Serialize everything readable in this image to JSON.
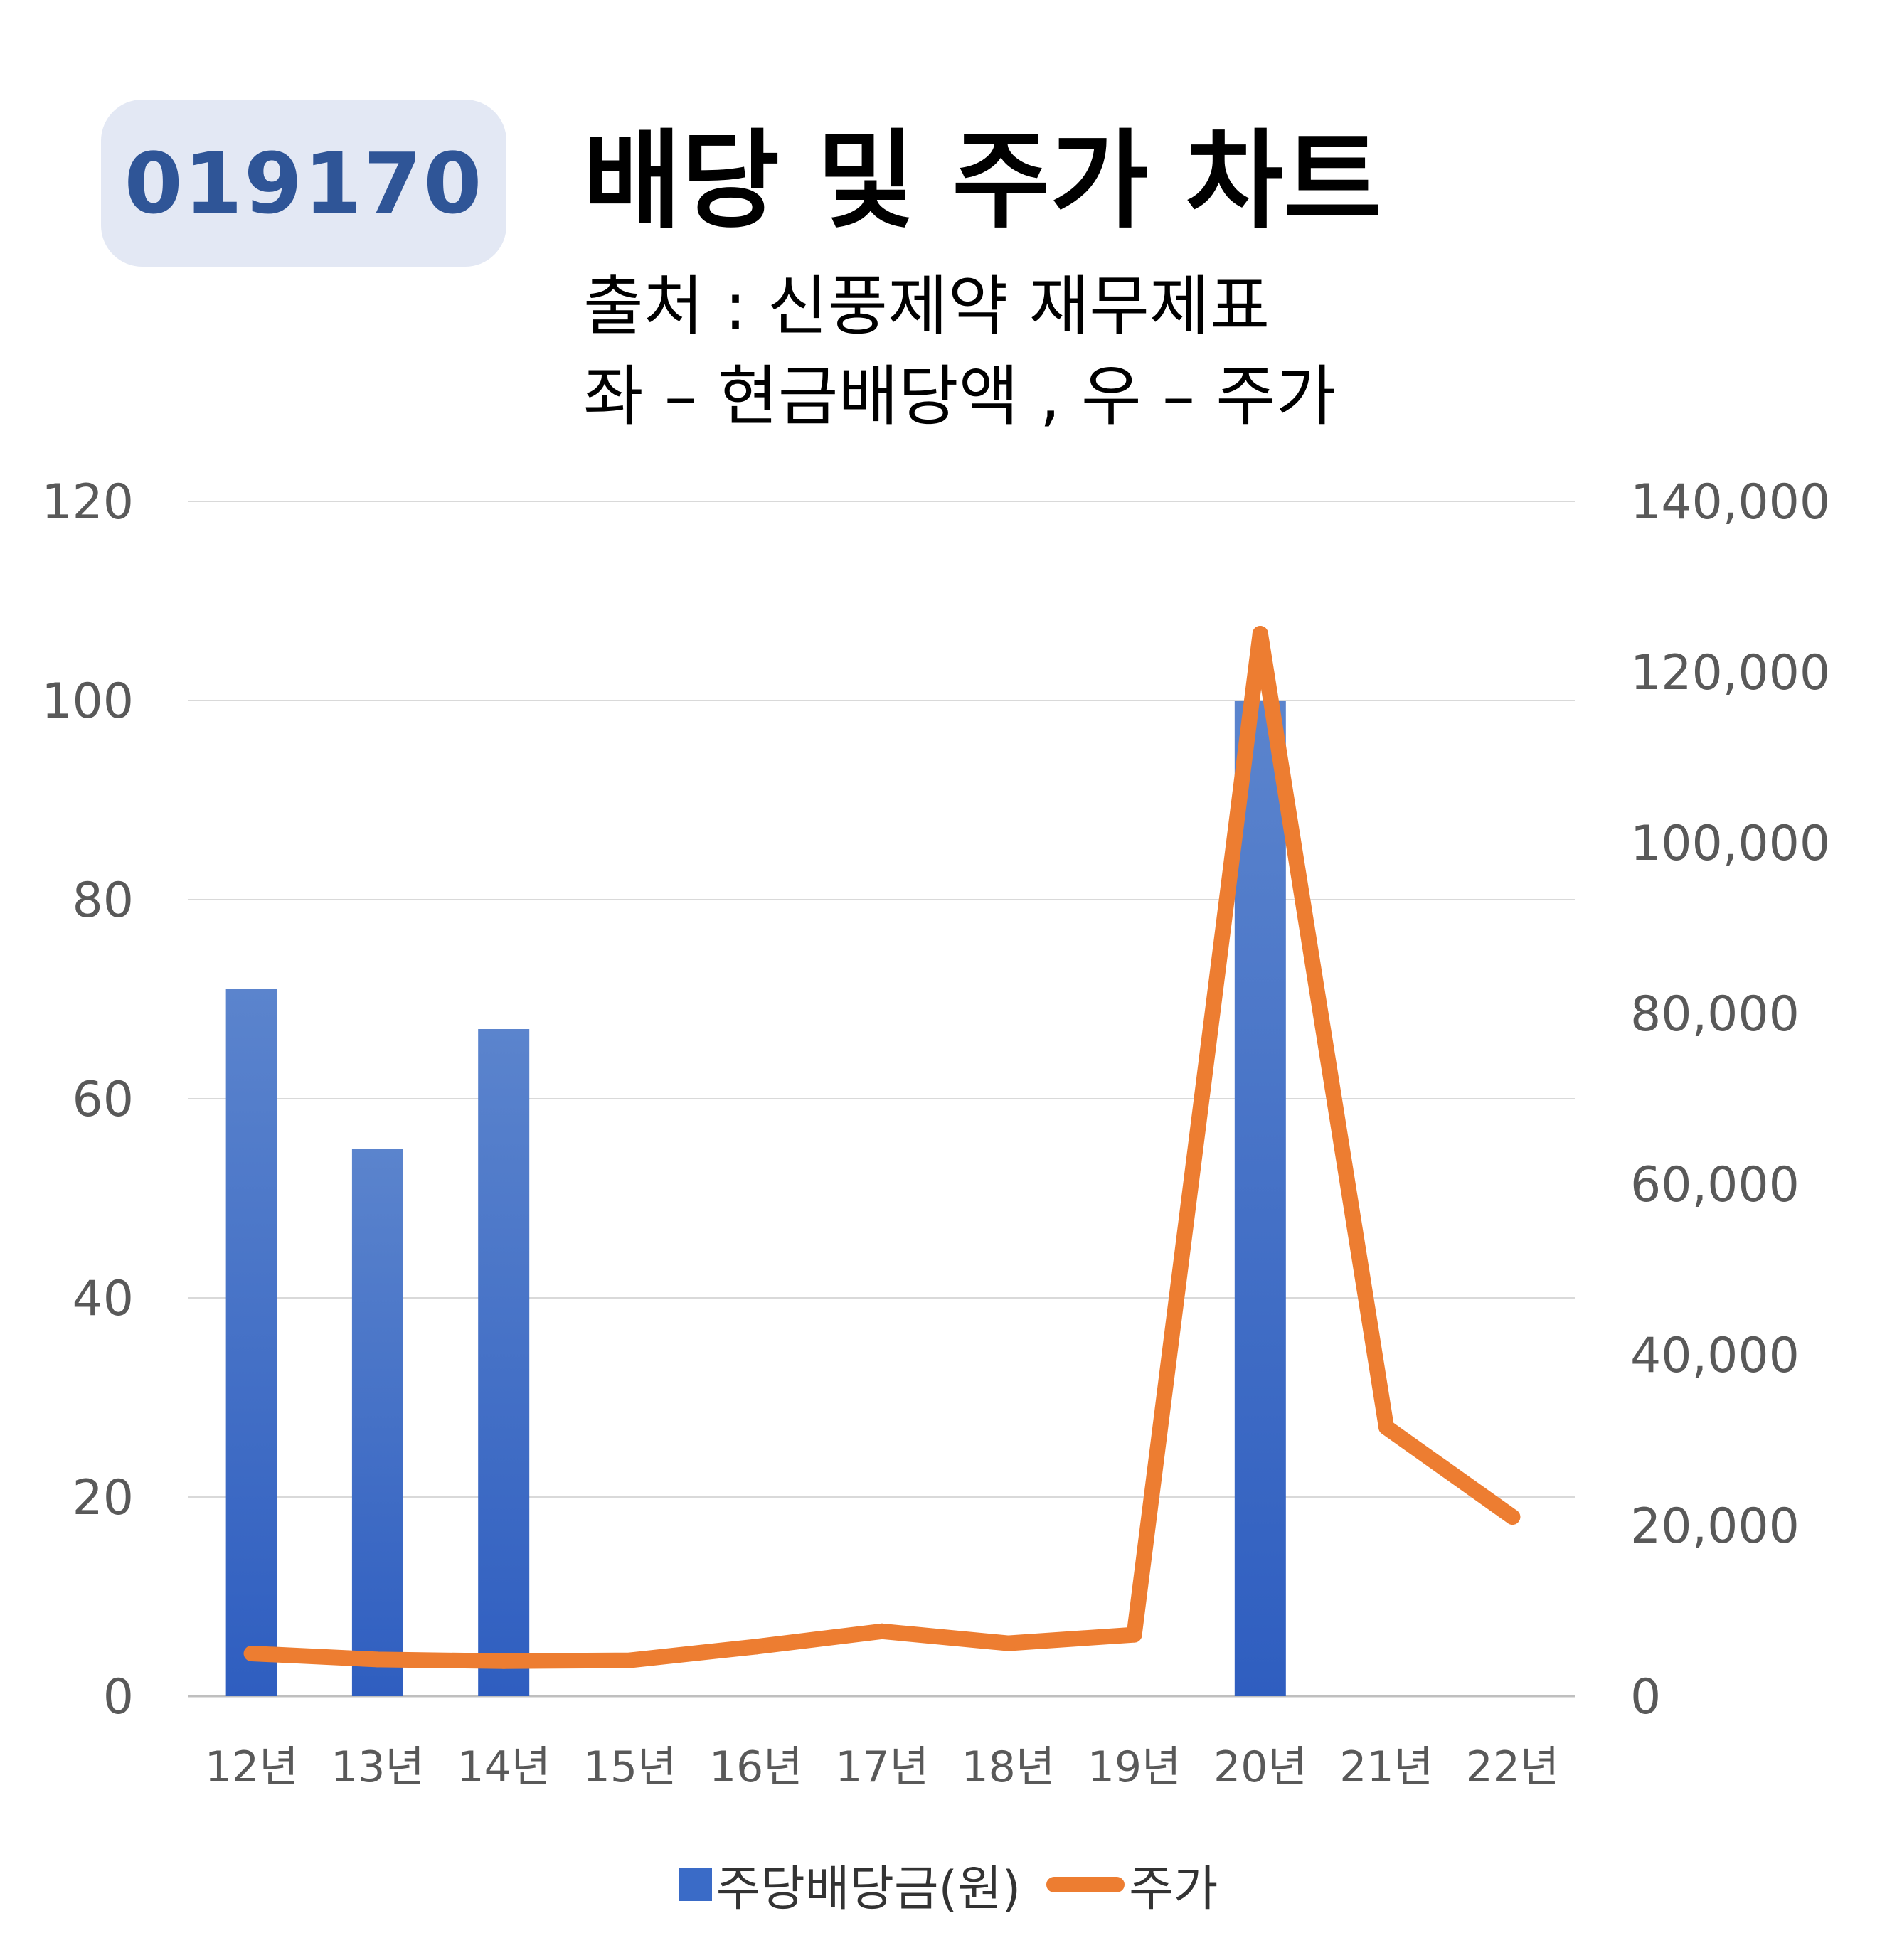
{
  "badge": "019170",
  "title": "배당 및 주가 차트",
  "subtitle1": "출처 : 신풍제약 재무제표",
  "subtitle2": "좌 – 현금배당액 , 우 – 주가",
  "colors": {
    "bar": "#3a6bc7",
    "line": "#ed7d31",
    "badge_bg": "#e3e8f4",
    "badge_text": "#2f5597",
    "grid": "#d9d9d9"
  },
  "chart_data": {
    "type": "bar",
    "categories": [
      "12년",
      "13년",
      "14년",
      "15년",
      "16년",
      "17년",
      "18년",
      "19년",
      "20년",
      "21년",
      "22년"
    ],
    "series": [
      {
        "name": "주당배당금(원)",
        "type": "bar",
        "axis": "left",
        "values": [
          71,
          55,
          67,
          0,
          0,
          0,
          0,
          0,
          100,
          0,
          0
        ]
      },
      {
        "name": "주가",
        "type": "line",
        "axis": "right",
        "values": [
          5000,
          4300,
          4100,
          4200,
          5800,
          7600,
          6200,
          7200,
          124500,
          31500,
          21000
        ]
      }
    ],
    "ylim_left": [
      0,
      120
    ],
    "yticks_left": [
      "0",
      "20",
      "40",
      "60",
      "80",
      "100",
      "120"
    ],
    "ylim_right": [
      0,
      140000
    ],
    "yticks_right": [
      "0",
      "20,000",
      "40,000",
      "60,000",
      "80,000",
      "100,000",
      "120,000",
      "140,000"
    ],
    "grid": true,
    "legend": "bottom"
  }
}
